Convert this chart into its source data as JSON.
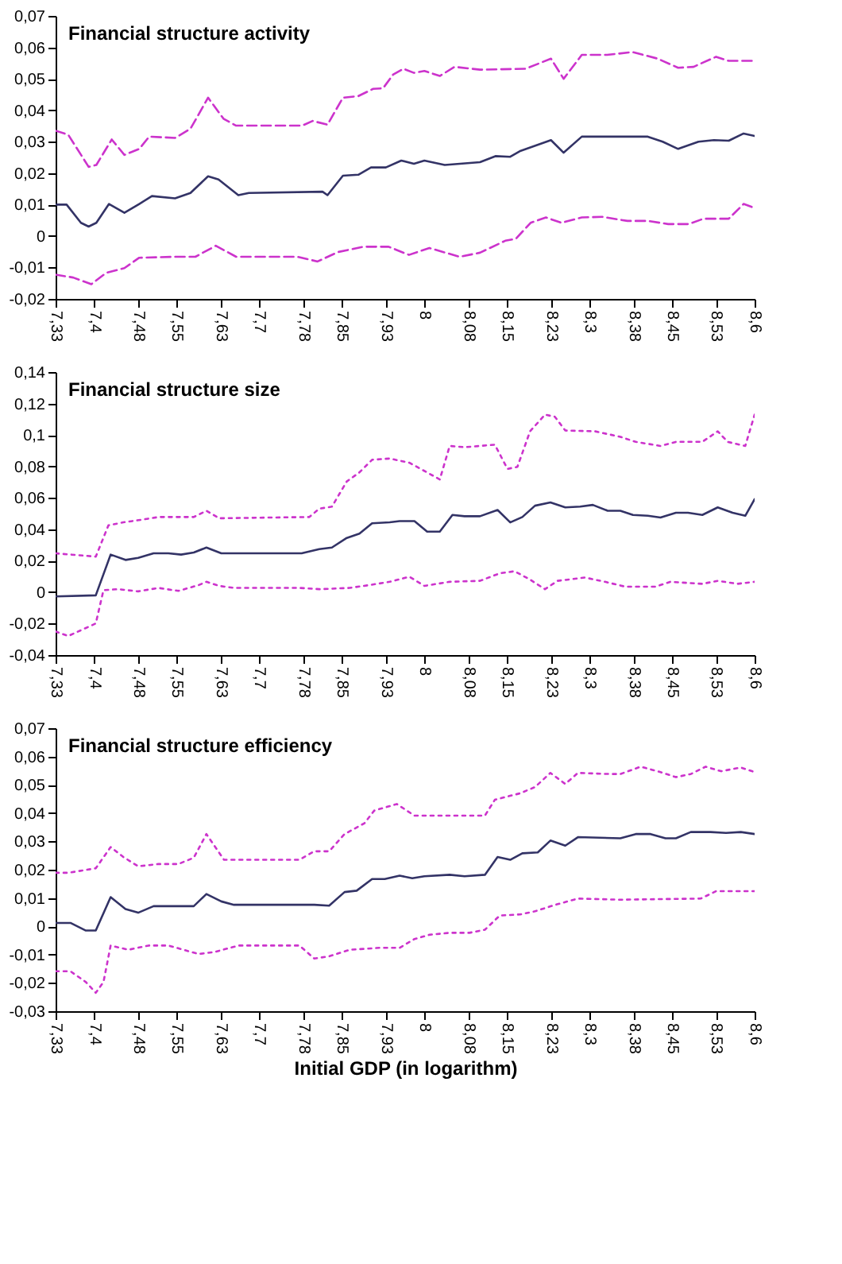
{
  "chart_data": [
    {
      "type": "line",
      "title": "Financial structure activity",
      "grid": false,
      "xlim": [
        7.33,
        8.6
      ],
      "xticks": [
        {
          "value": 7.33,
          "label": "7,33"
        },
        {
          "value": 7.4,
          "label": "7,4"
        },
        {
          "value": 7.48,
          "label": "7,48"
        },
        {
          "value": 7.55,
          "label": "7,55"
        },
        {
          "value": 7.63,
          "label": "7,63"
        },
        {
          "value": 7.7,
          "label": "7,7"
        },
        {
          "value": 7.78,
          "label": "7,78"
        },
        {
          "value": 7.85,
          "label": "7,85"
        },
        {
          "value": 7.93,
          "label": "7,93"
        },
        8,
        {
          "value": 8.08,
          "label": "8,08"
        },
        {
          "value": 8.15,
          "label": "8,15"
        },
        {
          "value": 8.23,
          "label": "8,23"
        },
        {
          "value": 8.3,
          "label": "8,3"
        },
        {
          "value": 8.38,
          "label": "8,38"
        },
        {
          "value": 8.45,
          "label": "8,45"
        },
        {
          "value": 8.53,
          "label": "8,53"
        },
        {
          "value": 8.6,
          "label": "8,6"
        }
      ],
      "ylim": [
        -0.02,
        0.07
      ],
      "yticks": [
        {
          "value": -0.02,
          "label": "-0,02"
        },
        {
          "value": -0.01,
          "label": "-0,01"
        },
        0,
        {
          "value": 0.01,
          "label": "0,01"
        },
        {
          "value": 0.02,
          "label": "0,02"
        },
        {
          "value": 0.03,
          "label": "0,03"
        },
        {
          "value": 0.04,
          "label": "0,04"
        },
        {
          "value": 0.05,
          "label": "0,05"
        },
        {
          "value": 0.06,
          "label": "0,06"
        },
        {
          "value": 0.07,
          "label": "0,07"
        }
      ],
      "series": [
        {
          "color": "#333366",
          "line_style": "solid",
          "x": [
            7.33,
            7.35,
            7.376,
            7.39,
            7.404,
            7.427,
            7.455,
            7.482,
            7.505,
            7.547,
            7.575,
            7.607,
            7.626,
            7.662,
            7.681,
            7.815,
            7.824,
            7.852,
            7.88,
            7.903,
            7.93,
            7.958,
            7.981,
            8.0,
            8.037,
            8.06,
            8.101,
            8.129,
            8.156,
            8.175,
            8.23,
            8.253,
            8.286,
            8.406,
            8.433,
            8.461,
            8.498,
            8.526,
            8.553,
            8.58,
            8.6
          ],
          "values": [
            0.01,
            0.01,
            0.0042,
            0.003,
            0.0042,
            0.0102,
            0.0074,
            0.0102,
            0.0127,
            0.012,
            0.0137,
            0.019,
            0.018,
            0.013,
            0.0137,
            0.0141,
            0.013,
            0.0192,
            0.0195,
            0.0218,
            0.0218,
            0.024,
            0.023,
            0.024,
            0.0226,
            0.0229,
            0.0235,
            0.0254,
            0.0252,
            0.0271,
            0.0305,
            0.0265,
            0.0316,
            0.0316,
            0.03,
            0.0277,
            0.03,
            0.0305,
            0.0303,
            0.0326,
            0.0318
          ]
        },
        {
          "color": "#cc33cc",
          "line_style": "dashed",
          "x": [
            7.33,
            7.353,
            7.39,
            7.404,
            7.432,
            7.455,
            7.482,
            7.5,
            7.547,
            7.575,
            7.607,
            7.635,
            7.658,
            7.778,
            7.797,
            7.824,
            7.852,
            7.88,
            7.907,
            7.925,
            7.943,
            7.962,
            7.981,
            8.0,
            8.028,
            8.055,
            8.101,
            8.184,
            8.23,
            8.253,
            8.286,
            8.332,
            8.378,
            8.424,
            8.461,
            8.489,
            8.53,
            8.553,
            8.6
          ],
          "values": [
            0.0335,
            0.0322,
            0.022,
            0.0226,
            0.0307,
            0.0258,
            0.0277,
            0.0316,
            0.0312,
            0.0341,
            0.044,
            0.0373,
            0.0351,
            0.0351,
            0.0366,
            0.0354,
            0.044,
            0.0445,
            0.0468,
            0.047,
            0.0513,
            0.0532,
            0.0519,
            0.0525,
            0.0509,
            0.0538,
            0.0529,
            0.0532,
            0.0564,
            0.05,
            0.0576,
            0.0576,
            0.0585,
            0.0564,
            0.0535,
            0.0538,
            0.057,
            0.0557,
            0.0557
          ]
        },
        {
          "color": "#cc33cc",
          "line_style": "dashed",
          "x": [
            7.33,
            7.362,
            7.395,
            7.422,
            7.455,
            7.482,
            7.547,
            7.584,
            7.621,
            7.658,
            7.769,
            7.806,
            7.843,
            7.889,
            7.935,
            7.972,
            8.009,
            8.064,
            8.101,
            8.147,
            8.166,
            8.193,
            8.221,
            8.249,
            8.286,
            8.323,
            8.369,
            8.406,
            8.443,
            8.48,
            8.507,
            8.553,
            8.58,
            8.6
          ],
          "values": [
            -0.0123,
            -0.0132,
            -0.0153,
            -0.0117,
            -0.0102,
            -0.0069,
            -0.0066,
            -0.0066,
            -0.0031,
            -0.0066,
            -0.0066,
            -0.0081,
            -0.0051,
            -0.0034,
            -0.0034,
            -0.006,
            -0.0038,
            -0.0066,
            -0.0053,
            -0.0015,
            -0.0009,
            0.0042,
            0.0059,
            0.0042,
            0.0059,
            0.0061,
            0.0048,
            0.0048,
            0.0038,
            0.0038,
            0.0055,
            0.0055,
            0.0102,
            0.0089
          ]
        }
      ]
    },
    {
      "type": "line",
      "title": "Financial structure size",
      "grid": false,
      "xlim": [
        7.33,
        8.6
      ],
      "xticks": [
        {
          "value": 7.33,
          "label": "7,33"
        },
        {
          "value": 7.4,
          "label": "7,4"
        },
        {
          "value": 7.48,
          "label": "7,48"
        },
        {
          "value": 7.55,
          "label": "7,55"
        },
        {
          "value": 7.63,
          "label": "7,63"
        },
        {
          "value": 7.7,
          "label": "7,7"
        },
        {
          "value": 7.78,
          "label": "7,78"
        },
        {
          "value": 7.85,
          "label": "7,85"
        },
        {
          "value": 7.93,
          "label": "7,93"
        },
        8,
        {
          "value": 8.08,
          "label": "8,08"
        },
        {
          "value": 8.15,
          "label": "8,15"
        },
        {
          "value": 8.23,
          "label": "8,23"
        },
        {
          "value": 8.3,
          "label": "8,3"
        },
        {
          "value": 8.38,
          "label": "8,38"
        },
        {
          "value": 8.45,
          "label": "8,45"
        },
        {
          "value": 8.53,
          "label": "8,53"
        },
        {
          "value": 8.6,
          "label": "8,6"
        }
      ],
      "ylim": [
        -0.04,
        0.14
      ],
      "yticks": [
        {
          "value": -0.04,
          "label": "-0,04"
        },
        {
          "value": -0.02,
          "label": "-0,02"
        },
        0,
        {
          "value": 0.02,
          "label": "0,02"
        },
        {
          "value": 0.04,
          "label": "0,04"
        },
        {
          "value": 0.06,
          "label": "0,06"
        },
        {
          "value": 0.08,
          "label": "0,08"
        },
        {
          "value": 0.1,
          "label": "0,1"
        },
        {
          "value": 0.12,
          "label": "0,12"
        },
        {
          "value": 0.14,
          "label": "0,14"
        }
      ],
      "series": [
        {
          "color": "#333366",
          "line_style": "solid",
          "x": [
            7.33,
            7.403,
            7.43,
            7.457,
            7.48,
            7.508,
            7.535,
            7.558,
            7.581,
            7.604,
            7.631,
            7.777,
            7.809,
            7.832,
            7.859,
            7.882,
            7.905,
            7.937,
            7.955,
            7.982,
            8.005,
            8.028,
            8.051,
            8.073,
            8.101,
            8.133,
            8.156,
            8.178,
            8.201,
            8.229,
            8.256,
            8.283,
            8.306,
            8.333,
            8.356,
            8.379,
            8.406,
            8.429,
            8.457,
            8.479,
            8.505,
            8.533,
            8.56,
            8.583,
            8.6
          ],
          "values": [
            -0.0027,
            -0.002,
            0.0239,
            0.0205,
            0.0218,
            0.0247,
            0.0247,
            0.0239,
            0.0252,
            0.0284,
            0.0247,
            0.0247,
            0.0274,
            0.0284,
            0.0345,
            0.0372,
            0.0438,
            0.0444,
            0.0452,
            0.0452,
            0.0385,
            0.0385,
            0.0491,
            0.0483,
            0.0483,
            0.0523,
            0.0444,
            0.0478,
            0.055,
            0.0571,
            0.0539,
            0.0544,
            0.0555,
            0.0518,
            0.0518,
            0.0491,
            0.0486,
            0.0475,
            0.0505,
            0.0505,
            0.0491,
            0.0539,
            0.0505,
            0.0486,
            0.0592
          ]
        },
        {
          "color": "#cc33cc",
          "line_style": "dotted",
          "x": [
            7.33,
            7.403,
            7.426,
            7.453,
            7.485,
            7.517,
            7.581,
            7.604,
            7.627,
            7.791,
            7.809,
            7.832,
            7.859,
            7.882,
            7.905,
            7.937,
            7.973,
            8.028,
            8.046,
            8.073,
            8.128,
            8.151,
            8.169,
            8.192,
            8.219,
            8.237,
            8.256,
            8.31,
            8.356,
            8.384,
            8.429,
            8.457,
            8.505,
            8.533,
            8.551,
            8.583,
            8.6
          ],
          "values": [
            0.0247,
            0.0226,
            0.0425,
            0.0444,
            0.046,
            0.0478,
            0.0478,
            0.0518,
            0.047,
            0.0478,
            0.0531,
            0.0544,
            0.0704,
            0.0762,
            0.0842,
            0.085,
            0.0823,
            0.0717,
            0.093,
            0.0922,
            0.0938,
            0.0784,
            0.0797,
            0.1023,
            0.1129,
            0.1116,
            0.1028,
            0.1023,
            0.0988,
            0.0956,
            0.093,
            0.0956,
            0.0956,
            0.1023,
            0.0956,
            0.093,
            0.1129
          ]
        },
        {
          "color": "#cc33cc",
          "line_style": "dotted",
          "x": [
            7.33,
            7.353,
            7.403,
            7.417,
            7.444,
            7.48,
            7.517,
            7.553,
            7.59,
            7.604,
            7.627,
            7.654,
            7.773,
            7.809,
            7.864,
            7.9,
            7.937,
            7.973,
            8.0,
            8.046,
            8.101,
            8.137,
            8.164,
            8.192,
            8.219,
            8.242,
            8.292,
            8.328,
            8.365,
            8.42,
            8.447,
            8.505,
            8.533,
            8.569,
            8.6
          ],
          "values": [
            -0.025,
            -0.0279,
            -0.0199,
            0.0013,
            0.0019,
            0.0005,
            0.0027,
            0.0008,
            0.0045,
            0.0066,
            0.004,
            0.0027,
            0.0027,
            0.0019,
            0.0027,
            0.0045,
            0.0066,
            0.0098,
            0.004,
            0.0066,
            0.0072,
            0.012,
            0.0133,
            0.008,
            0.0019,
            0.0072,
            0.0093,
            0.0066,
            0.0035,
            0.0035,
            0.0066,
            0.0053,
            0.0072,
            0.0053,
            0.0066
          ]
        }
      ]
    },
    {
      "type": "line",
      "title": "Financial structure efficiency",
      "xlabel": "Initial GDP (in logarithm)",
      "grid": false,
      "xlim": [
        7.33,
        8.6
      ],
      "xticks": [
        {
          "value": 7.33,
          "label": "7,33"
        },
        {
          "value": 7.4,
          "label": "7,4"
        },
        {
          "value": 7.48,
          "label": "7,48"
        },
        {
          "value": 7.55,
          "label": "7,55"
        },
        {
          "value": 7.63,
          "label": "7,63"
        },
        {
          "value": 7.7,
          "label": "7,7"
        },
        {
          "value": 7.78,
          "label": "7,78"
        },
        {
          "value": 7.85,
          "label": "7,85"
        },
        {
          "value": 7.93,
          "label": "7,93"
        },
        8,
        {
          "value": 8.08,
          "label": "8,08"
        },
        {
          "value": 8.15,
          "label": "8,15"
        },
        {
          "value": 8.23,
          "label": "8,23"
        },
        {
          "value": 8.3,
          "label": "8,3"
        },
        {
          "value": 8.38,
          "label": "8,38"
        },
        {
          "value": 8.45,
          "label": "8,45"
        },
        {
          "value": 8.53,
          "label": "8,53"
        },
        {
          "value": 8.6,
          "label": "8,6"
        }
      ],
      "ylim": [
        -0.03,
        0.07
      ],
      "yticks": [
        {
          "value": -0.03,
          "label": "-0,03"
        },
        {
          "value": -0.02,
          "label": "-0,02"
        },
        {
          "value": -0.01,
          "label": "-0,01"
        },
        0,
        {
          "value": 0.01,
          "label": "0,01"
        },
        {
          "value": 0.02,
          "label": "0,02"
        },
        {
          "value": 0.03,
          "label": "0,03"
        },
        {
          "value": 0.04,
          "label": "0,04"
        },
        {
          "value": 0.05,
          "label": "0,05"
        },
        {
          "value": 0.06,
          "label": "0,06"
        },
        {
          "value": 0.07,
          "label": "0,07"
        }
      ],
      "series": [
        {
          "color": "#333366",
          "line_style": "solid",
          "x": [
            7.33,
            7.357,
            7.385,
            7.403,
            7.43,
            7.457,
            7.48,
            7.508,
            7.581,
            7.604,
            7.631,
            7.654,
            7.8,
            7.827,
            7.855,
            7.877,
            7.905,
            7.928,
            7.955,
            7.978,
            8.0,
            8.046,
            8.073,
            8.11,
            8.133,
            8.156,
            8.178,
            8.206,
            8.229,
            8.256,
            8.279,
            8.356,
            8.384,
            8.411,
            8.438,
            8.457,
            8.484,
            8.52,
            8.548,
            8.575,
            8.6
          ],
          "values": [
            0.0012,
            0.0012,
            -0.0015,
            -0.0015,
            0.0103,
            0.0061,
            0.0048,
            0.0071,
            0.0071,
            0.0114,
            0.0088,
            0.0076,
            0.0076,
            0.0073,
            0.0121,
            0.0126,
            0.0167,
            0.0167,
            0.0179,
            0.017,
            0.0177,
            0.0182,
            0.0177,
            0.0182,
            0.0245,
            0.0235,
            0.0258,
            0.0261,
            0.0303,
            0.0285,
            0.0315,
            0.0311,
            0.0326,
            0.0326,
            0.0311,
            0.0311,
            0.0333,
            0.0333,
            0.033,
            0.0333,
            0.0326
          ]
        },
        {
          "color": "#cc33cc",
          "line_style": "dotted",
          "x": [
            7.33,
            7.353,
            7.403,
            7.43,
            7.453,
            7.48,
            7.517,
            7.553,
            7.581,
            7.604,
            7.636,
            7.773,
            7.8,
            7.827,
            7.855,
            7.891,
            7.909,
            7.95,
            7.982,
            8.11,
            8.128,
            8.174,
            8.201,
            8.229,
            8.256,
            8.279,
            8.338,
            8.356,
            8.393,
            8.429,
            8.457,
            8.484,
            8.511,
            8.539,
            8.575,
            8.6
          ],
          "values": [
            0.0189,
            0.0189,
            0.0205,
            0.028,
            0.0245,
            0.0212,
            0.022,
            0.022,
            0.0242,
            0.0326,
            0.0235,
            0.0235,
            0.0265,
            0.0265,
            0.0326,
            0.0364,
            0.0409,
            0.0432,
            0.0391,
            0.0391,
            0.0447,
            0.047,
            0.0492,
            0.0542,
            0.0503,
            0.0542,
            0.0538,
            0.0538,
            0.0564,
            0.0545,
            0.0527,
            0.0538,
            0.0564,
            0.0548,
            0.0561,
            0.0545
          ]
        },
        {
          "color": "#cc33cc",
          "line_style": "dotted",
          "x": [
            7.33,
            7.357,
            7.385,
            7.403,
            7.417,
            7.43,
            7.462,
            7.499,
            7.535,
            7.59,
            7.618,
            7.663,
            7.773,
            7.8,
            7.827,
            7.864,
            7.919,
            7.955,
            7.982,
            8.009,
            8.046,
            8.082,
            8.11,
            8.137,
            8.174,
            8.201,
            8.238,
            8.279,
            8.356,
            8.502,
            8.53,
            8.6
          ],
          "values": [
            -0.0159,
            -0.0159,
            -0.0197,
            -0.0235,
            -0.0197,
            -0.0068,
            -0.0083,
            -0.0068,
            -0.0068,
            -0.0098,
            -0.0091,
            -0.0068,
            -0.0068,
            -0.0114,
            -0.0106,
            -0.0083,
            -0.0076,
            -0.0076,
            -0.0045,
            -0.003,
            -0.0023,
            -0.0023,
            -0.0012,
            0.0038,
            0.0042,
            0.0053,
            0.0076,
            0.0098,
            0.0094,
            0.0098,
            0.0124,
            0.0124
          ]
        }
      ]
    }
  ]
}
